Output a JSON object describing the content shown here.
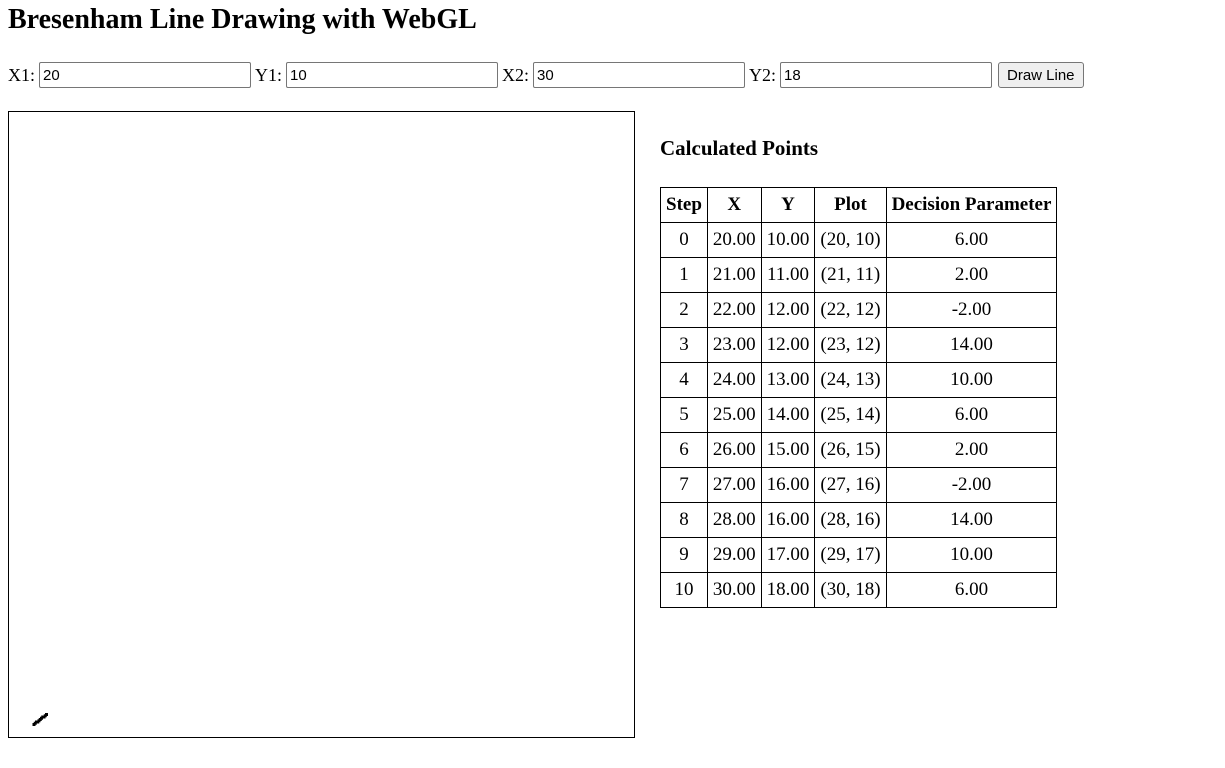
{
  "page": {
    "title": "Bresenham Line Drawing with WebGL"
  },
  "controls": {
    "x1": {
      "label": "X1:",
      "value": "20"
    },
    "y1": {
      "label": "Y1:",
      "value": "10"
    },
    "x2": {
      "label": "X2:",
      "value": "30"
    },
    "y2": {
      "label": "Y2:",
      "value": "18"
    },
    "draw_label": "Draw Line"
  },
  "canvas": {
    "background": "#ffffff",
    "line_color": "#000000",
    "grid_units": 500
  },
  "points": {
    "heading": "Calculated Points",
    "columns": [
      "Step",
      "X",
      "Y",
      "Plot",
      "Decision Parameter"
    ],
    "rows": [
      [
        "0",
        "20.00",
        "10.00",
        "(20, 10)",
        "6.00"
      ],
      [
        "1",
        "21.00",
        "11.00",
        "(21, 11)",
        "2.00"
      ],
      [
        "2",
        "22.00",
        "12.00",
        "(22, 12)",
        "-2.00"
      ],
      [
        "3",
        "23.00",
        "12.00",
        "(23, 12)",
        "14.00"
      ],
      [
        "4",
        "24.00",
        "13.00",
        "(24, 13)",
        "10.00"
      ],
      [
        "5",
        "25.00",
        "14.00",
        "(25, 14)",
        "6.00"
      ],
      [
        "6",
        "26.00",
        "15.00",
        "(26, 15)",
        "2.00"
      ],
      [
        "7",
        "27.00",
        "16.00",
        "(27, 16)",
        "-2.00"
      ],
      [
        "8",
        "28.00",
        "16.00",
        "(28, 16)",
        "14.00"
      ],
      [
        "9",
        "29.00",
        "17.00",
        "(29, 17)",
        "10.00"
      ],
      [
        "10",
        "30.00",
        "18.00",
        "(30, 18)",
        "6.00"
      ]
    ]
  }
}
